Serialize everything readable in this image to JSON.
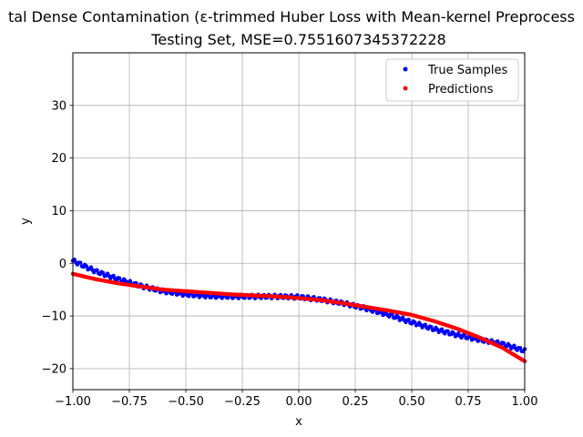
{
  "chart_data": {
    "type": "scatter",
    "title_line1": "tal Dense Contamination (ε-trimmed Huber Loss with Mean-kernel Preprocess",
    "title_line2": "Testing Set, MSE=0.7551607345372228",
    "xlabel": "x",
    "ylabel": "y",
    "xlim": [
      -1.0,
      1.0
    ],
    "ylim": [
      -24,
      40
    ],
    "xticks": [
      -1.0,
      -0.75,
      -0.5,
      -0.25,
      0.0,
      0.25,
      0.5,
      0.75,
      1.0
    ],
    "xtick_labels": [
      "−1.00",
      "−0.75",
      "−0.50",
      "−0.25",
      "0.00",
      "0.25",
      "0.50",
      "0.75",
      "1.00"
    ],
    "yticks": [
      -20,
      -10,
      0,
      10,
      20,
      30
    ],
    "ytick_labels": [
      "−20",
      "−10",
      "0",
      "10",
      "20",
      "30"
    ],
    "grid": true,
    "legend_position": "top-right",
    "series": [
      {
        "name": "True Samples",
        "color": "#0000ff",
        "x": [
          -1.0,
          -0.9,
          -0.8,
          -0.7,
          -0.6,
          -0.5,
          -0.4,
          -0.3,
          -0.2,
          -0.1,
          0.0,
          0.1,
          0.2,
          0.3,
          0.4,
          0.5,
          0.6,
          0.7,
          0.8,
          0.9,
          1.0
        ],
        "y": [
          0.5,
          -1.5,
          -3.0,
          -4.3,
          -5.3,
          -5.9,
          -6.2,
          -6.3,
          -6.3,
          -6.3,
          -6.4,
          -6.9,
          -7.6,
          -8.6,
          -9.8,
          -11.2,
          -12.5,
          -13.6,
          -14.5,
          -15.3,
          -16.6
        ]
      },
      {
        "name": "Predictions",
        "color": "#ff0000",
        "x": [
          -1.0,
          -0.9,
          -0.8,
          -0.7,
          -0.6,
          -0.5,
          -0.4,
          -0.3,
          -0.2,
          -0.1,
          0.0,
          0.1,
          0.2,
          0.3,
          0.4,
          0.5,
          0.6,
          0.7,
          0.8,
          0.9,
          1.0
        ],
        "y": [
          -2.0,
          -3.0,
          -3.8,
          -4.4,
          -5.0,
          -5.3,
          -5.6,
          -5.9,
          -6.1,
          -6.3,
          -6.6,
          -7.0,
          -7.6,
          -8.3,
          -9.0,
          -9.8,
          -11.0,
          -12.4,
          -14.1,
          -16.0,
          -18.6
        ]
      }
    ]
  }
}
